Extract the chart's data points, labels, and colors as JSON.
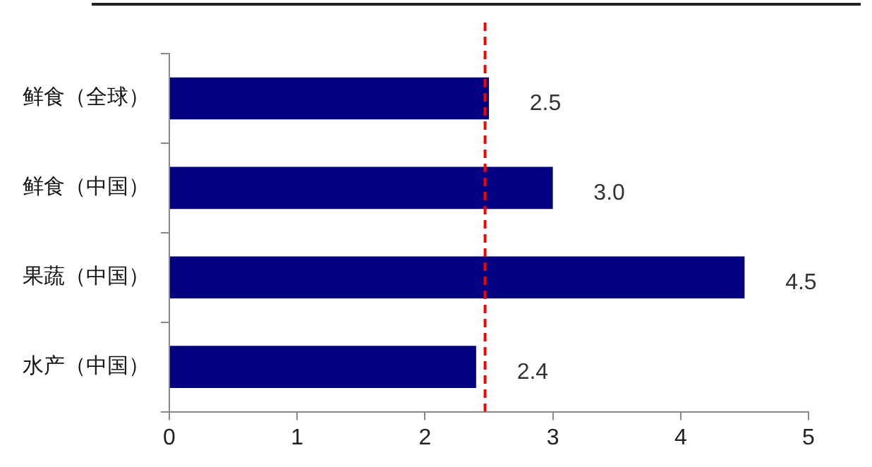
{
  "chart_data": {
    "type": "bar",
    "orientation": "horizontal",
    "categories": [
      "鲜食（全球）",
      "鲜食（中国）",
      "果蔬（中国）",
      "水产（中国）"
    ],
    "values": [
      2.5,
      3.0,
      4.5,
      2.4
    ],
    "color": "#000080",
    "value_labels": [
      "2.5",
      "3.0",
      "4.5",
      "2.4"
    ],
    "xlim": [
      0,
      5
    ],
    "xticks": [
      0,
      1,
      2,
      3,
      4,
      5
    ],
    "grid": false,
    "legend": false,
    "ref_lines": [
      {
        "axis": "x",
        "value": 2.47,
        "color": "#ff0000",
        "line_style": "dashed"
      }
    ]
  }
}
